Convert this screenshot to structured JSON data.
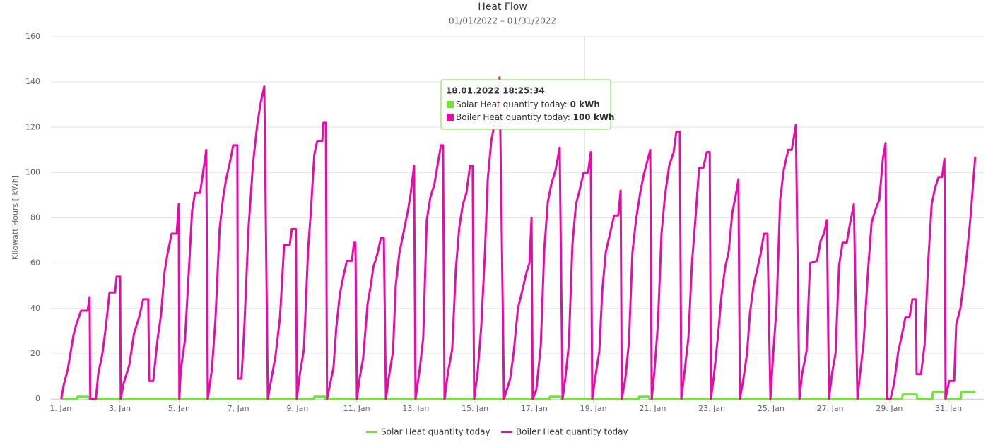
{
  "chart_data": {
    "type": "line",
    "title": "Heat Flow",
    "subtitle": "01/01/2022 – 01/31/2022",
    "y_label": "Kilowatt Hours [ kWh]",
    "xlim": [
      0.67,
      32.19
    ],
    "ylim": [
      0,
      160
    ],
    "yticks": [
      0,
      20,
      40,
      60,
      80,
      100,
      120,
      140,
      160
    ],
    "xticks": [
      {
        "value": 1,
        "label": "1. Jan"
      },
      {
        "value": 3,
        "label": "3. Jan"
      },
      {
        "value": 5,
        "label": "5. Jan"
      },
      {
        "value": 7,
        "label": "7. Jan"
      },
      {
        "value": 9,
        "label": "9. Jan"
      },
      {
        "value": 11,
        "label": "11. Jan"
      },
      {
        "value": 13,
        "label": "13. Jan"
      },
      {
        "value": 15,
        "label": "15. Jan"
      },
      {
        "value": 17,
        "label": "17. Jan"
      },
      {
        "value": 19,
        "label": "19. Jan"
      },
      {
        "value": 21,
        "label": "21. Jan"
      },
      {
        "value": 23,
        "label": "23. Jan"
      },
      {
        "value": 25,
        "label": "25. Jan"
      },
      {
        "value": 27,
        "label": "27. Jan"
      },
      {
        "value": 29,
        "label": "29. Jan"
      },
      {
        "value": 31,
        "label": "31. Jan"
      }
    ],
    "grid": true,
    "series": [
      {
        "name": "Solar Heat quantity today",
        "color": "#6fe633",
        "x": [
          1.02,
          1.55,
          1.57,
          1.93,
          1.95,
          9.55,
          9.57,
          9.93,
          9.95,
          17.51,
          17.53,
          17.89,
          17.91,
          20.52,
          20.54,
          20.87,
          20.89,
          29.43,
          29.45,
          29.92,
          29.94,
          30.45,
          30.47,
          30.87,
          30.89,
          31.41,
          31.43,
          31.91
        ],
        "values": [
          0,
          0,
          1,
          1,
          0,
          0,
          1,
          1,
          0,
          0,
          1,
          1,
          0,
          0,
          1,
          1,
          0,
          0,
          2,
          2,
          0,
          0,
          3,
          3,
          0,
          0,
          3,
          3
        ]
      },
      {
        "name": "Boiler Heat quantity today",
        "color": "#e70ca8",
        "x": [
          1.02,
          1.1,
          1.24,
          1.43,
          1.53,
          1.69,
          1.91,
          1.98,
          2.0,
          2.19,
          2.27,
          2.41,
          2.53,
          2.65,
          2.84,
          2.89,
          3.01,
          3.03,
          3.13,
          3.32,
          3.48,
          3.65,
          3.79,
          3.96,
          3.99,
          4.13,
          4.27,
          4.39,
          4.51,
          4.61,
          4.75,
          4.92,
          4.99,
          5.01,
          5.06,
          5.2,
          5.35,
          5.44,
          5.54,
          5.71,
          5.8,
          5.92,
          5.97,
          6.11,
          6.23,
          6.37,
          6.49,
          6.59,
          6.71,
          6.83,
          6.97,
          6.99,
          7.11,
          7.21,
          7.35,
          7.5,
          7.64,
          7.76,
          7.88,
          8.0,
          8.12,
          8.26,
          8.41,
          8.55,
          8.74,
          8.81,
          8.95,
          8.98,
          9.07,
          9.22,
          9.36,
          9.45,
          9.57,
          9.67,
          9.84,
          9.88,
          9.96,
          10.0,
          10.22,
          10.31,
          10.43,
          10.55,
          10.67,
          10.84,
          10.91,
          10.96,
          11.01,
          11.1,
          11.22,
          11.37,
          11.49,
          11.56,
          11.7,
          11.82,
          11.92,
          11.99,
          12.08,
          12.23,
          12.32,
          12.44,
          12.56,
          12.73,
          12.82,
          12.94,
          12.99,
          13.13,
          13.25,
          13.37,
          13.49,
          13.63,
          13.73,
          13.85,
          13.92,
          13.97,
          14.09,
          14.23,
          14.35,
          14.47,
          14.59,
          14.71,
          14.83,
          14.92,
          14.97,
          15.09,
          15.21,
          15.33,
          15.43,
          15.55,
          15.71,
          15.83,
          15.98,
          16.19,
          16.31,
          16.45,
          16.6,
          16.74,
          16.84,
          16.91,
          16.95,
          17.07,
          17.22,
          17.34,
          17.46,
          17.58,
          17.72,
          17.86,
          17.96,
          18.05,
          18.17,
          18.29,
          18.41,
          18.53,
          18.67,
          18.82,
          18.91,
          18.96,
          19.08,
          19.2,
          19.3,
          19.42,
          19.56,
          19.7,
          19.84,
          19.92,
          19.96,
          20.08,
          20.2,
          20.32,
          20.44,
          20.58,
          20.7,
          20.82,
          20.92,
          20.97,
          21.06,
          21.18,
          21.3,
          21.42,
          21.56,
          21.71,
          21.8,
          21.92,
          21.97,
          22.07,
          22.21,
          22.33,
          22.45,
          22.57,
          22.71,
          22.83,
          22.93,
          22.97,
          23.07,
          23.21,
          23.33,
          23.45,
          23.57,
          23.69,
          23.81,
          23.9,
          23.95,
          24.07,
          24.19,
          24.29,
          24.41,
          24.53,
          24.65,
          24.76,
          24.88,
          24.98,
          25.07,
          25.19,
          25.31,
          25.43,
          25.58,
          25.7,
          25.84,
          25.96,
          26.05,
          26.2,
          26.32,
          26.56,
          26.68,
          26.79,
          26.89,
          26.96,
          27.06,
          27.18,
          27.3,
          27.42,
          27.56,
          27.65,
          27.8,
          27.92,
          28.01,
          28.13,
          28.28,
          28.4,
          28.54,
          28.66,
          28.78,
          28.87,
          28.92,
          29.04,
          29.16,
          29.3,
          29.42,
          29.54,
          29.68,
          29.78,
          29.9,
          29.92,
          30.07,
          30.19,
          30.31,
          30.43,
          30.54,
          30.66,
          30.78,
          30.86,
          30.9,
          31.02,
          31.19,
          31.26,
          31.4,
          31.5,
          31.62,
          31.74,
          31.9
        ],
        "values": [
          0,
          6,
          13,
          28,
          33,
          39,
          39,
          45,
          0,
          0,
          11,
          20,
          32,
          47,
          47,
          54,
          54,
          0,
          7,
          15,
          29,
          36,
          44,
          44,
          8,
          8,
          26,
          37,
          56,
          64,
          73,
          73,
          86,
          0,
          13,
          26,
          61,
          83,
          91,
          91,
          99,
          110,
          0,
          13,
          35,
          75,
          89,
          97,
          104,
          112,
          112,
          9,
          9,
          33,
          76,
          104,
          121,
          131,
          138,
          0,
          9,
          19,
          36,
          68,
          68,
          75,
          75,
          0,
          10,
          22,
          66,
          82,
          108,
          114,
          114,
          122,
          122,
          0,
          14,
          31,
          46,
          54,
          61,
          61,
          69,
          69,
          0,
          9,
          18,
          42,
          51,
          58,
          64,
          71,
          71,
          0,
          9,
          21,
          50,
          64,
          72,
          83,
          90,
          103,
          0,
          13,
          27,
          79,
          89,
          95,
          103,
          112,
          112,
          0,
          12,
          22,
          57,
          76,
          86,
          91,
          103,
          103,
          0,
          12,
          32,
          63,
          97,
          114,
          125,
          142,
          0,
          9,
          21,
          40,
          48,
          56,
          60,
          80,
          0,
          4,
          23,
          66,
          87,
          95,
          101,
          111,
          0,
          9,
          24,
          68,
          86,
          92,
          100,
          100,
          109,
          0,
          11,
          21,
          48,
          65,
          73,
          81,
          81,
          92,
          0,
          9,
          25,
          65,
          79,
          91,
          99,
          105,
          110,
          0,
          12,
          33,
          73,
          90,
          103,
          109,
          118,
          118,
          0,
          11,
          27,
          60,
          80,
          102,
          102,
          109,
          109,
          0,
          10,
          28,
          46,
          58,
          65,
          82,
          90,
          97,
          0,
          9,
          20,
          38,
          50,
          57,
          64,
          73,
          73,
          0,
          19,
          41,
          88,
          101,
          110,
          110,
          121,
          0,
          11,
          21,
          60,
          61,
          70,
          73,
          79,
          0,
          11,
          20,
          59,
          69,
          69,
          76,
          86,
          0,
          11,
          25,
          57,
          78,
          84,
          88,
          106,
          113,
          0,
          0,
          7,
          21,
          28,
          36,
          36,
          44,
          44,
          11,
          11,
          24,
          60,
          86,
          93,
          98,
          98,
          106,
          0,
          8,
          8,
          33,
          40,
          50,
          64,
          80,
          107
        ]
      }
    ],
    "tooltip": {
      "title": "18.01.2022 18:25:34",
      "rows": [
        {
          "label": "Solar Heat quantity today: ",
          "value": "0 kWh"
        },
        {
          "label": "Boiler Heat quantity today: ",
          "value": "100 kWh"
        }
      ]
    }
  }
}
